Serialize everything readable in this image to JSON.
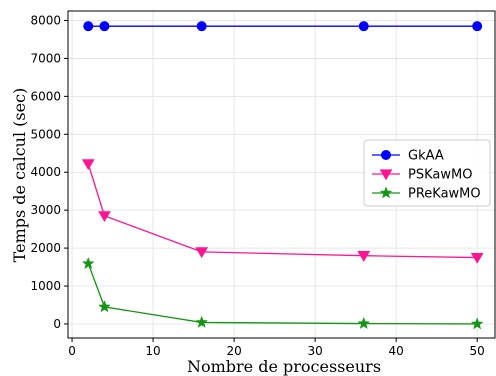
{
  "chart_data": {
    "type": "line",
    "title": "",
    "xlabel": "Nombre de processeurs",
    "ylabel": "Temps de calcul (sec)",
    "xlim": [
      -0.5,
      52.2
    ],
    "ylim": [
      -370,
      8250
    ],
    "xticks": [
      0,
      10,
      20,
      30,
      40,
      50
    ],
    "yticks": [
      0,
      1000,
      2000,
      3000,
      4000,
      5000,
      6000,
      7000,
      8000
    ],
    "grid": true,
    "legend_position": "center-right",
    "series": [
      {
        "name": "GkAA",
        "color": "#0000ff",
        "marker": "circle",
        "x": [
          2,
          4,
          16,
          36,
          50
        ],
        "y": [
          7850,
          7850,
          7850,
          7850,
          7850
        ]
      },
      {
        "name": "PSKawMO",
        "color": "#ff1493",
        "marker": "triangle-down",
        "x": [
          2,
          4,
          16,
          36,
          50
        ],
        "y": [
          4220,
          2850,
          1900,
          1800,
          1750
        ]
      },
      {
        "name": "PReKawMO",
        "color": "#149614",
        "marker": "star",
        "x": [
          2,
          4,
          16,
          36,
          50
        ],
        "y": [
          1590,
          450,
          40,
          10,
          0
        ]
      }
    ]
  }
}
